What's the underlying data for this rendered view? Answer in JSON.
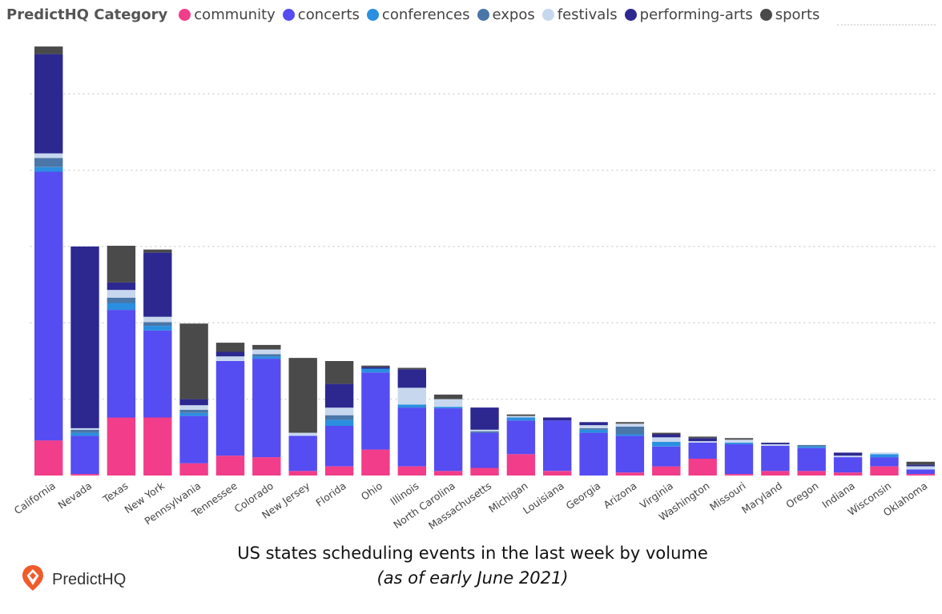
{
  "legend": {
    "title": "PredictHQ Category",
    "items": [
      {
        "label": "community",
        "color": "#f23d8a"
      },
      {
        "label": "concerts",
        "color": "#554cf2"
      },
      {
        "label": "conferences",
        "color": "#2a8fe0"
      },
      {
        "label": "expos",
        "color": "#4a76a8"
      },
      {
        "label": "festivals",
        "color": "#c7d7ee"
      },
      {
        "label": "performing-arts",
        "color": "#2c2890"
      },
      {
        "label": "sports",
        "color": "#4a4a4a"
      }
    ]
  },
  "caption": {
    "title": "US states scheduling events in the last week by volume",
    "subtitle": "(as of early June 2021)"
  },
  "brand": {
    "name": "PredictHQ",
    "logo_color": "#f15a2b"
  },
  "chart_data": {
    "type": "bar",
    "stacked": true,
    "title": "",
    "xlabel": "",
    "ylabel": "",
    "ylim": [
      0,
      56
    ],
    "grid": true,
    "gridlines": [
      10,
      20,
      30,
      40,
      50
    ],
    "legend_position": "top-left",
    "categories": [
      "California",
      "Nevada",
      "Texas",
      "New York",
      "Pennsylvania",
      "Tennessee",
      "Colorado",
      "New Jersey",
      "Florida",
      "Ohio",
      "Illinois",
      "North Carolina",
      "Massachusetts",
      "Michigan",
      "Louisiana",
      "Georgia",
      "Arizona",
      "Virginia",
      "Washington",
      "Missouri",
      "Maryland",
      "Oregon",
      "Indiana",
      "Wisconsin",
      "Oklahoma"
    ],
    "series": [
      {
        "name": "community",
        "color": "#f23d8a",
        "values": [
          4.6,
          0.2,
          7.6,
          7.6,
          1.6,
          2.6,
          2.4,
          0.6,
          1.2,
          3.4,
          1.2,
          0.6,
          1.0,
          2.8,
          0.6,
          0.0,
          0.4,
          1.2,
          2.2,
          0.2,
          0.6,
          0.6,
          0.4,
          1.2,
          0.2
        ]
      },
      {
        "name": "concerts",
        "color": "#554cf2",
        "values": [
          35.2,
          5.0,
          14.1,
          11.4,
          6.2,
          12.4,
          12.9,
          4.6,
          5.3,
          10.1,
          7.7,
          8.2,
          4.6,
          4.4,
          6.6,
          5.6,
          4.8,
          2.6,
          2.1,
          3.9,
          3.3,
          3.0,
          2.0,
          1.2,
          0.6
        ]
      },
      {
        "name": "conferences",
        "color": "#2a8fe0",
        "values": [
          0.6,
          0.4,
          0.9,
          0.6,
          0.4,
          0.0,
          0.3,
          0.0,
          0.8,
          0.5,
          0.4,
          0.2,
          0.0,
          0.4,
          0.0,
          0.4,
          0.2,
          0.6,
          0.0,
          0.2,
          0.0,
          0.2,
          0.0,
          0.4,
          0.0
        ]
      },
      {
        "name": "expos",
        "color": "#4a76a8",
        "values": [
          1.2,
          0.4,
          0.7,
          0.5,
          0.4,
          0.0,
          0.3,
          0.0,
          0.6,
          0.0,
          0.0,
          0.0,
          0.2,
          0.0,
          0.0,
          0.2,
          1.0,
          0.0,
          0.0,
          0.0,
          0.0,
          0.2,
          0.0,
          0.0,
          0.0
        ]
      },
      {
        "name": "festivals",
        "color": "#c7d7ee",
        "values": [
          0.6,
          0.2,
          1.0,
          0.7,
          0.6,
          0.6,
          0.6,
          0.4,
          1.0,
          0.0,
          2.2,
          1.0,
          0.2,
          0.2,
          0.0,
          0.4,
          0.4,
          0.6,
          0.2,
          0.4,
          0.2,
          0.0,
          0.2,
          0.2,
          0.4
        ]
      },
      {
        "name": "performing-arts",
        "color": "#2c2890",
        "values": [
          13.0,
          23.8,
          1.0,
          8.4,
          0.8,
          0.6,
          0.0,
          0.0,
          3.1,
          0.2,
          2.4,
          0.0,
          2.9,
          0.0,
          0.4,
          0.4,
          0.0,
          0.4,
          0.4,
          0.0,
          0.2,
          0.0,
          0.4,
          0.0,
          0.2
        ]
      },
      {
        "name": "sports",
        "color": "#4a4a4a",
        "values": [
          1.0,
          0.0,
          4.8,
          0.4,
          9.9,
          1.2,
          0.6,
          9.8,
          3.0,
          0.2,
          0.2,
          0.6,
          0.0,
          0.2,
          0.0,
          0.0,
          0.2,
          0.2,
          0.2,
          0.2,
          0.0,
          0.0,
          0.0,
          0.0,
          0.4
        ]
      }
    ]
  }
}
